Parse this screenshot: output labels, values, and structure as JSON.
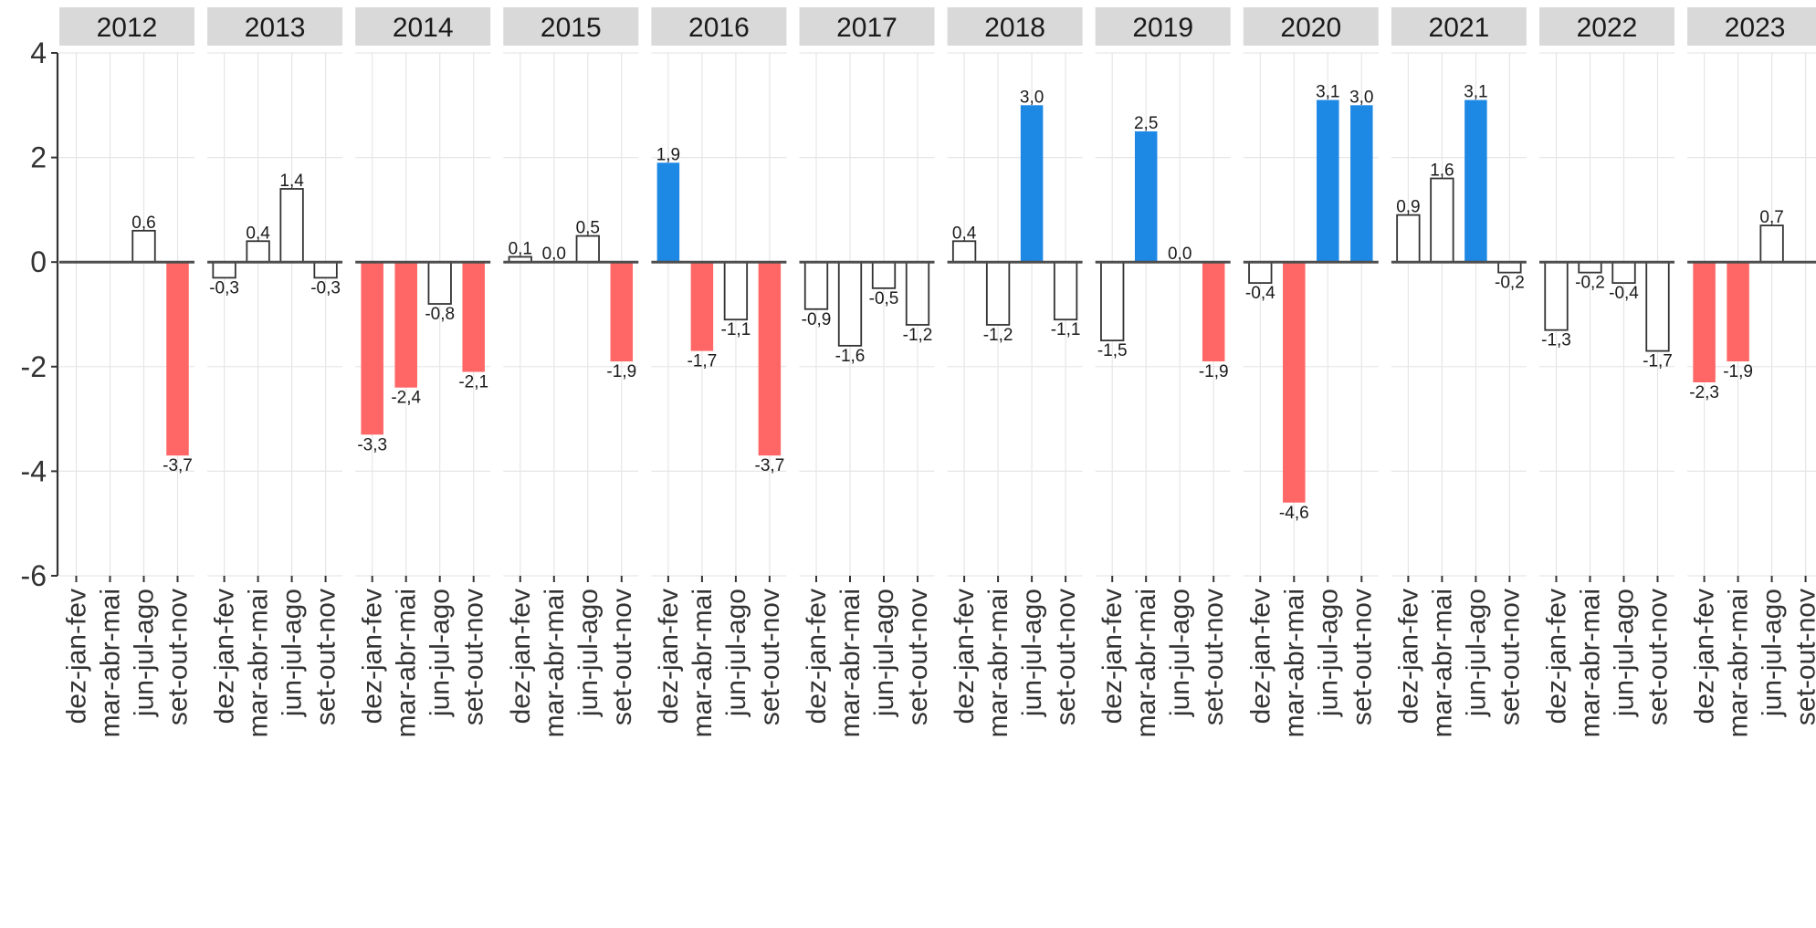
{
  "chart_data": {
    "type": "bar",
    "layout": "faceted",
    "facets": [
      "2012",
      "2013",
      "2014",
      "2015",
      "2016",
      "2017",
      "2018",
      "2019",
      "2020",
      "2021",
      "2022",
      "2023"
    ],
    "categories": [
      "dez-jan-fev",
      "mar-abr-mai",
      "jun-jul-ago",
      "set-out-nov"
    ],
    "values": [
      [
        null,
        null,
        0.6,
        -3.7
      ],
      [
        -0.3,
        0.4,
        1.4,
        -0.3
      ],
      [
        -3.3,
        -2.4,
        -0.8,
        -2.1
      ],
      [
        0.1,
        0.0,
        0.5,
        -1.9
      ],
      [
        1.9,
        -1.7,
        -1.1,
        -3.7
      ],
      [
        -0.9,
        -1.6,
        -0.5,
        -1.2
      ],
      [
        0.4,
        -1.2,
        3.0,
        -1.1
      ],
      [
        -1.5,
        2.5,
        0.0,
        -1.9
      ],
      [
        -0.4,
        -4.6,
        3.1,
        3.0
      ],
      [
        0.9,
        1.6,
        3.1,
        -0.2
      ],
      [
        -1.3,
        -0.2,
        -0.4,
        -1.7
      ],
      [
        -2.3,
        -1.9,
        0.7,
        null
      ]
    ],
    "labels": [
      [
        "",
        "",
        "0,6",
        "-3,7"
      ],
      [
        "-0,3",
        "0,4",
        "1,4",
        "-0,3"
      ],
      [
        "-3,3",
        "-2,4",
        "-0,8",
        "-2,1"
      ],
      [
        "0,1",
        "0,0",
        "0,5",
        "-1,9"
      ],
      [
        "1,9",
        "-1,7",
        "-1,1",
        "-3,7"
      ],
      [
        "-0,9",
        "-1,6",
        "-0,5",
        "-1,2"
      ],
      [
        "0,4",
        "-1,2",
        "3,0",
        "-1,1"
      ],
      [
        "-1,5",
        "2,5",
        "0,0",
        "-1,9"
      ],
      [
        "-0,4",
        "-4,6",
        "3,1",
        "3,0"
      ],
      [
        "0,9",
        "1,6",
        "3,1",
        "-0,2"
      ],
      [
        "-1,3",
        "-0,2",
        "-0,4",
        "-1,7"
      ],
      [
        "-2,3",
        "-1,9",
        "0,7",
        ""
      ]
    ],
    "fill": [
      [
        "none",
        "none",
        "white",
        "red"
      ],
      [
        "white",
        "white",
        "white",
        "white"
      ],
      [
        "red",
        "red",
        "white",
        "red"
      ],
      [
        "white",
        "white",
        "white",
        "red"
      ],
      [
        "blue",
        "red",
        "white",
        "red"
      ],
      [
        "white",
        "white",
        "white",
        "white"
      ],
      [
        "white",
        "white",
        "blue",
        "white"
      ],
      [
        "white",
        "blue",
        "white",
        "red"
      ],
      [
        "white",
        "red",
        "blue",
        "blue"
      ],
      [
        "white",
        "white",
        "blue",
        "white"
      ],
      [
        "white",
        "white",
        "white",
        "white"
      ],
      [
        "red",
        "red",
        "white",
        "none"
      ]
    ],
    "ylim": [
      -6,
      4
    ],
    "yticks": [
      {
        "value": 4,
        "label": "4"
      },
      {
        "value": 2,
        "label": "2"
      },
      {
        "value": 0,
        "label": "0"
      },
      {
        "value": -2,
        "label": "-2"
      },
      {
        "value": -4,
        "label": "-4"
      },
      {
        "value": -6,
        "label": "-6"
      }
    ],
    "title": "",
    "xlabel": "",
    "ylabel": "",
    "grid": true,
    "colors": {
      "blue": "#1E88E5",
      "red": "#FF6666",
      "white": "#FFFFFF",
      "outline": "#333333",
      "strip": "#D9D9D9",
      "grid": "#E6E6E6",
      "zero_line": "#4D4D4D"
    }
  }
}
